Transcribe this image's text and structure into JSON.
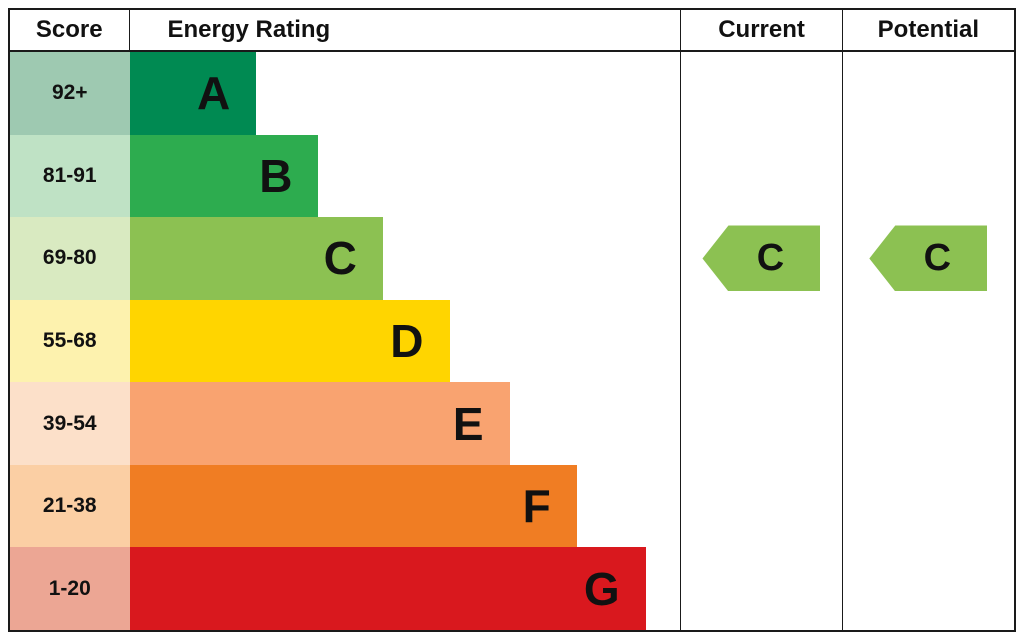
{
  "header": {
    "score": "Score",
    "rating": "Energy Rating",
    "current": "Current",
    "potential": "Potential"
  },
  "bands": [
    {
      "score": "92+",
      "letter": "A",
      "color": "#008a52",
      "tint": "#9ec9b1"
    },
    {
      "score": "81-91",
      "letter": "B",
      "color": "#2dac4f",
      "tint": "#bfe2c5"
    },
    {
      "score": "69-80",
      "letter": "C",
      "color": "#8cc152",
      "tint": "#d9eac1"
    },
    {
      "score": "55-68",
      "letter": "D",
      "color": "#ffd500",
      "tint": "#fdf2ae"
    },
    {
      "score": "39-54",
      "letter": "E",
      "color": "#f9a370",
      "tint": "#fce0c9"
    },
    {
      "score": "21-38",
      "letter": "F",
      "color": "#f07d23",
      "tint": "#fbcfa4"
    },
    {
      "score": "1-20",
      "letter": "G",
      "color": "#d9181e",
      "tint": "#eca694"
    }
  ],
  "current": {
    "letter": "C",
    "color": "#8cc152"
  },
  "potential": {
    "letter": "C",
    "color": "#8cc152"
  },
  "chart_data": {
    "type": "bar",
    "title": "Energy Rating (EPC band chart)",
    "categories": [
      "A",
      "B",
      "C",
      "D",
      "E",
      "F",
      "G"
    ],
    "score_ranges": [
      "92+",
      "81-91",
      "69-80",
      "55-68",
      "39-54",
      "21-38",
      "1-20"
    ],
    "bar_fractions": [
      0.23,
      0.343,
      0.46,
      0.581,
      0.69,
      0.812,
      0.937
    ],
    "band_colors": [
      "#008a52",
      "#2dac4f",
      "#8cc152",
      "#ffd500",
      "#f9a370",
      "#f07d23",
      "#d9181e"
    ],
    "current_rating": "C",
    "potential_rating": "C",
    "legend_position": "none",
    "grid": false
  }
}
